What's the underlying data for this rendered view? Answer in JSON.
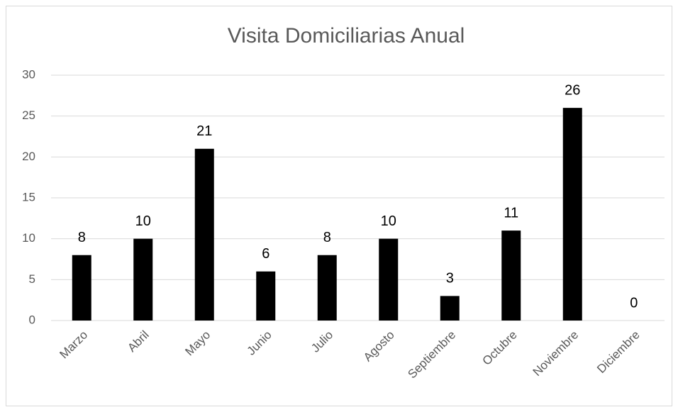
{
  "chart_data": {
    "type": "bar",
    "title": "Visita Domiciliarias Anual",
    "categories": [
      "Marzo",
      "Abril",
      "Mayo",
      "Junio",
      "Julio",
      "Agosto",
      "Septiembre",
      "Octubre",
      "Noviembre",
      "Diciembre"
    ],
    "values": [
      8,
      10,
      21,
      6,
      8,
      10,
      3,
      11,
      26,
      0
    ],
    "color": "#000000",
    "ylim": [
      0,
      30
    ],
    "yticks": [
      0,
      5,
      10,
      15,
      20,
      25,
      30
    ],
    "grid": true,
    "data_labels": true
  }
}
